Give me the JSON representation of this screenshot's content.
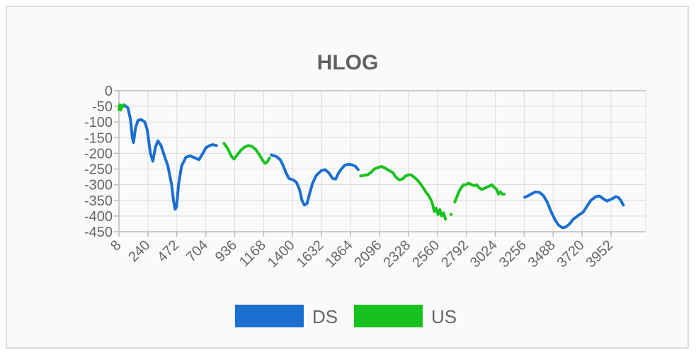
{
  "chart_data": {
    "type": "line",
    "title": "HLOG",
    "xlabel": "",
    "ylabel": "",
    "xlim": [
      8,
      4230
    ],
    "ylim": [
      -450,
      0
    ],
    "yticks": [
      0,
      -50,
      -100,
      -150,
      -200,
      -250,
      -300,
      -350,
      -400,
      -450
    ],
    "xticks": [
      8,
      240,
      472,
      704,
      936,
      1168,
      1400,
      1632,
      1864,
      2096,
      2328,
      2560,
      2792,
      3024,
      3256,
      3488,
      3720,
      3952
    ],
    "grid": true,
    "legend_position": "bottom",
    "series": [
      {
        "name": "DS",
        "color": "#1a6fcf",
        "segments": [
          [
            [
              48,
              -45
            ],
            [
              80,
              -55
            ],
            [
              100,
              -90
            ],
            [
              115,
              -150
            ],
            [
              125,
              -165
            ],
            [
              140,
              -120
            ],
            [
              160,
              -95
            ],
            [
              185,
              -92
            ],
            [
              215,
              -100
            ],
            [
              235,
              -125
            ],
            [
              260,
              -200
            ],
            [
              280,
              -225
            ],
            [
              300,
              -180
            ],
            [
              320,
              -160
            ],
            [
              345,
              -175
            ],
            [
              370,
              -205
            ],
            [
              400,
              -240
            ],
            [
              430,
              -300
            ],
            [
              445,
              -350
            ],
            [
              458,
              -378
            ],
            [
              470,
              -370
            ],
            [
              485,
              -300
            ],
            [
              510,
              -240
            ],
            [
              545,
              -212
            ],
            [
              580,
              -208
            ],
            [
              620,
              -215
            ],
            [
              650,
              -220
            ],
            [
              680,
              -200
            ],
            [
              705,
              -182
            ],
            [
              735,
              -175
            ],
            [
              760,
              -172
            ],
            [
              790,
              -175
            ]
          ],
          [
            [
              1230,
              -205
            ],
            [
              1270,
              -210
            ],
            [
              1300,
              -220
            ],
            [
              1320,
              -235
            ],
            [
              1345,
              -260
            ],
            [
              1370,
              -280
            ],
            [
              1405,
              -285
            ],
            [
              1430,
              -292
            ],
            [
              1455,
              -315
            ],
            [
              1475,
              -350
            ],
            [
              1495,
              -365
            ],
            [
              1515,
              -360
            ],
            [
              1535,
              -330
            ],
            [
              1560,
              -295
            ],
            [
              1590,
              -270
            ],
            [
              1630,
              -255
            ],
            [
              1660,
              -252
            ],
            [
              1690,
              -262
            ],
            [
              1720,
              -280
            ],
            [
              1745,
              -282
            ],
            [
              1765,
              -265
            ],
            [
              1790,
              -250
            ],
            [
              1820,
              -237
            ],
            [
              1855,
              -235
            ],
            [
              1880,
              -237
            ],
            [
              1905,
              -242
            ],
            [
              1925,
              -252
            ]
          ],
          [
            [
              3260,
              -340
            ],
            [
              3290,
              -335
            ],
            [
              3320,
              -328
            ],
            [
              3350,
              -323
            ],
            [
              3380,
              -325
            ],
            [
              3410,
              -335
            ],
            [
              3440,
              -355
            ],
            [
              3470,
              -385
            ],
            [
              3500,
              -410
            ],
            [
              3530,
              -428
            ],
            [
              3560,
              -437
            ],
            [
              3590,
              -435
            ],
            [
              3620,
              -425
            ],
            [
              3650,
              -410
            ],
            [
              3690,
              -398
            ],
            [
              3730,
              -387
            ],
            [
              3760,
              -368
            ],
            [
              3790,
              -350
            ],
            [
              3830,
              -338
            ],
            [
              3860,
              -336
            ],
            [
              3890,
              -345
            ],
            [
              3920,
              -352
            ],
            [
              3960,
              -345
            ],
            [
              3990,
              -338
            ],
            [
              4010,
              -340
            ],
            [
              4030,
              -350
            ],
            [
              4050,
              -365
            ]
          ]
        ]
      },
      {
        "name": "US",
        "color": "#18c21e",
        "segments": [
          [
            [
              8,
              -60
            ],
            [
              15,
              -45
            ],
            [
              22,
              -62
            ],
            [
              30,
              -48
            ],
            [
              38,
              -52
            ],
            [
              45,
              -45
            ]
          ],
          [
            [
              850,
              -168
            ],
            [
              880,
              -185
            ],
            [
              910,
              -210
            ],
            [
              930,
              -218
            ],
            [
              955,
              -205
            ],
            [
              985,
              -190
            ],
            [
              1015,
              -180
            ],
            [
              1045,
              -175
            ],
            [
              1075,
              -178
            ],
            [
              1105,
              -188
            ],
            [
              1135,
              -205
            ],
            [
              1160,
              -222
            ],
            [
              1178,
              -232
            ],
            [
              1195,
              -228
            ],
            [
              1215,
              -215
            ]
          ],
          [
            [
              1945,
              -272
            ],
            [
              1975,
              -270
            ],
            [
              2005,
              -268
            ],
            [
              2035,
              -258
            ],
            [
              2055,
              -250
            ],
            [
              2085,
              -245
            ],
            [
              2115,
              -242
            ],
            [
              2145,
              -248
            ],
            [
              2175,
              -255
            ],
            [
              2205,
              -262
            ],
            [
              2225,
              -275
            ],
            [
              2255,
              -285
            ],
            [
              2280,
              -282
            ],
            [
              2305,
              -272
            ],
            [
              2335,
              -268
            ],
            [
              2355,
              -270
            ],
            [
              2385,
              -280
            ],
            [
              2410,
              -290
            ],
            [
              2430,
              -300
            ],
            [
              2455,
              -315
            ],
            [
              2470,
              -325
            ],
            [
              2490,
              -335
            ],
            [
              2505,
              -345
            ],
            [
              2520,
              -360
            ],
            [
              2535,
              -385
            ],
            [
              2550,
              -375
            ],
            [
              2565,
              -395
            ],
            [
              2580,
              -380
            ],
            [
              2595,
              -400
            ],
            [
              2610,
              -390
            ],
            [
              2625,
              -410
            ]
          ],
          [
            [
              2700,
              -355
            ],
            [
              2715,
              -340
            ],
            [
              2730,
              -325
            ],
            [
              2750,
              -310
            ],
            [
              2770,
              -300
            ],
            [
              2790,
              -300
            ],
            [
              2810,
              -295
            ],
            [
              2835,
              -300
            ],
            [
              2855,
              -303
            ],
            [
              2875,
              -300
            ],
            [
              2895,
              -310
            ],
            [
              2915,
              -315
            ],
            [
              2935,
              -312
            ],
            [
              2955,
              -308
            ],
            [
              2975,
              -305
            ],
            [
              2995,
              -300
            ],
            [
              3015,
              -308
            ],
            [
              3035,
              -315
            ],
            [
              3050,
              -330
            ],
            [
              3065,
              -323
            ],
            [
              3080,
              -330
            ],
            [
              3095,
              -330
            ]
          ]
        ],
        "points": [
          [
            2670,
            -395
          ]
        ]
      }
    ]
  }
}
